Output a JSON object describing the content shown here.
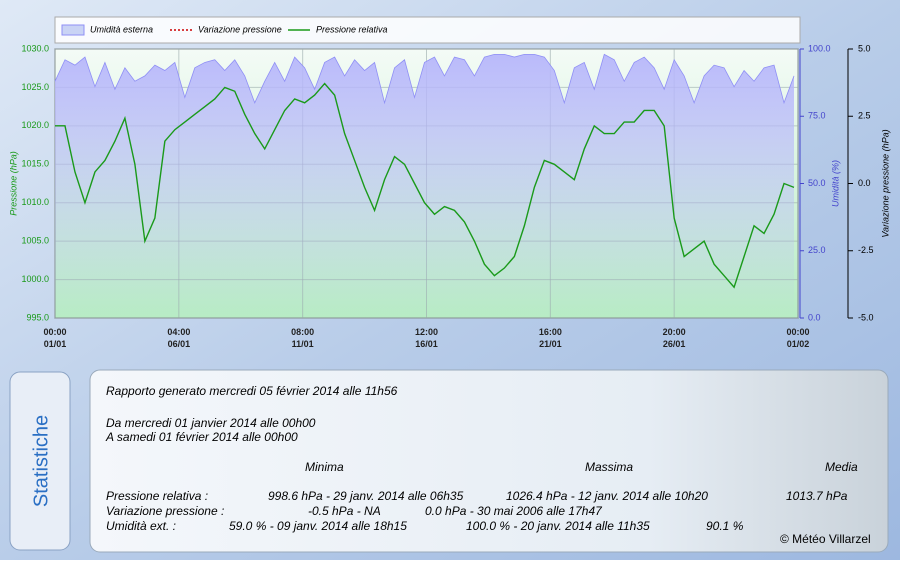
{
  "chart_data": {
    "type": "line",
    "legend": "top",
    "grid": true,
    "xlim": [
      0,
      744
    ],
    "xticks": [
      {
        "value": 0,
        "label": "00:00\n01/01"
      },
      {
        "value": 124,
        "label": "04:00\n06/01"
      },
      {
        "value": 248,
        "label": "08:00\n11/01"
      },
      {
        "value": 372,
        "label": "12:00\n16/01"
      },
      {
        "value": 496,
        "label": "16:00\n21/01"
      },
      {
        "value": 620,
        "label": "20:00\n26/01"
      },
      {
        "value": 744,
        "label": "00:00\n01/02"
      }
    ],
    "ylabel": "Pressione (hPa)",
    "ylim": [
      995,
      1030
    ],
    "yticks": [
      {
        "value": 995,
        "label": "995.0"
      },
      {
        "value": 1000,
        "label": "1000.0"
      },
      {
        "value": 1005,
        "label": "1005.0"
      },
      {
        "value": 1010,
        "label": "1010.0"
      },
      {
        "value": 1015,
        "label": "1015.0"
      },
      {
        "value": 1020,
        "label": "1020.0"
      },
      {
        "value": 1025,
        "label": "1025.0"
      },
      {
        "value": 1030,
        "label": "1030.0"
      }
    ],
    "y2label": "Umidità (%)",
    "y2lim": [
      0,
      100
    ],
    "y2ticks": [
      {
        "value": 0,
        "label": "0.0"
      },
      {
        "value": 25,
        "label": "25.0"
      },
      {
        "value": 50,
        "label": "50.0"
      },
      {
        "value": 75,
        "label": "75.0"
      },
      {
        "value": 100,
        "label": "100.0"
      }
    ],
    "y3label": "Variazione pressione (hPa)",
    "y3lim": [
      -5,
      5
    ],
    "y3ticks": [
      {
        "value": -5,
        "label": "-5.0"
      },
      {
        "value": -2.5,
        "label": "-2.5"
      },
      {
        "value": 0,
        "label": "0.0"
      },
      {
        "value": 2.5,
        "label": "2.5"
      },
      {
        "value": 5,
        "label": "5.0"
      }
    ],
    "x": [
      0,
      10,
      20,
      30,
      40,
      50,
      60,
      70,
      80,
      90,
      100,
      110,
      120,
      130,
      140,
      150,
      160,
      170,
      180,
      190,
      200,
      210,
      220,
      230,
      240,
      250,
      260,
      270,
      280,
      290,
      300,
      310,
      320,
      330,
      340,
      350,
      360,
      370,
      380,
      390,
      400,
      410,
      420,
      430,
      440,
      450,
      460,
      470,
      480,
      490,
      500,
      510,
      520,
      530,
      540,
      550,
      560,
      570,
      580,
      590,
      600,
      610,
      620,
      630,
      640,
      650,
      660,
      670,
      680,
      690,
      700,
      710,
      720,
      730,
      740
    ],
    "series": [
      {
        "name": "Umidità esterna",
        "color": "#8f8ff5",
        "axis": "y2",
        "area": true,
        "values": [
          88,
          96,
          94,
          97,
          86,
          95,
          85,
          93,
          88,
          90,
          94,
          92,
          95,
          82,
          93,
          95,
          96,
          92,
          96,
          90,
          80,
          88,
          95,
          88,
          97,
          93,
          85,
          95,
          97,
          90,
          96,
          92,
          95,
          80,
          93,
          96,
          82,
          95,
          97,
          90,
          97,
          96,
          90,
          97,
          98,
          98,
          97,
          98,
          98,
          97,
          92,
          80,
          93,
          95,
          85,
          98,
          96,
          88,
          95,
          97,
          93,
          85,
          96,
          90,
          80,
          90,
          94,
          93,
          86,
          92,
          88,
          93,
          94,
          80,
          90
        ]
      },
      {
        "name": "Variazione pressione",
        "color": "#cc0000",
        "axis": "y3",
        "dashed": true,
        "values": [
          null,
          null,
          null,
          null,
          null,
          null,
          null,
          null,
          null,
          null,
          null,
          null,
          null,
          null,
          null,
          null,
          null,
          null,
          null,
          null,
          null,
          null,
          null,
          null,
          null,
          null,
          null,
          null,
          null,
          null,
          null,
          null,
          null,
          null,
          null,
          null,
          null,
          null,
          null,
          null,
          null,
          null,
          null,
          null,
          null,
          null,
          null,
          null,
          null,
          null,
          null,
          null,
          null,
          null,
          null,
          null,
          null,
          null,
          null,
          null,
          null,
          null,
          null,
          null,
          null,
          null,
          null,
          null,
          null,
          null,
          null,
          null,
          null,
          null,
          null
        ]
      },
      {
        "name": "Pressione relativa",
        "color": "#1a9a1a",
        "axis": "y",
        "values": [
          1020,
          1020,
          1014,
          1010,
          1014,
          1015.5,
          1018,
          1021,
          1015,
          1005,
          1008,
          1018,
          1019.5,
          1020.5,
          1021.5,
          1022.5,
          1023.5,
          1025,
          1024.5,
          1021.5,
          1019,
          1017,
          1019.5,
          1022,
          1023.5,
          1023,
          1024,
          1025.5,
          1024,
          1019,
          1015.5,
          1012,
          1009,
          1013,
          1016,
          1015,
          1012.5,
          1010,
          1008.5,
          1009.5,
          1009,
          1007.5,
          1005,
          1002,
          1000.5,
          1001.5,
          1003,
          1007,
          1012,
          1015.5,
          1015,
          1014,
          1013,
          1017,
          1020,
          1019,
          1019,
          1020.5,
          1020.5,
          1022,
          1022,
          1020,
          1008,
          1003,
          1004,
          1005,
          1002,
          1000.5,
          999,
          1003,
          1007,
          1006,
          1008.5,
          1012.5,
          1012
        ]
      }
    ]
  },
  "stats": {
    "tab": "Statistiche",
    "report": "Rapporto generato mercredi 05 février 2014 alle 11h56",
    "from": "Da mercredi 01 janvier 2014 alle 00h00",
    "to": "A samedi 01 février 2014 alle 00h00",
    "headers": [
      "Minima",
      "Massima",
      "Media"
    ],
    "rows": [
      [
        "Pressione relativa :",
        "998.6 hPa - 29 janv. 2014 alle 06h35",
        "1026.4 hPa - 12 janv. 2014 alle 10h20",
        "1013.7 hPa"
      ],
      [
        "Variazione pressione :",
        "-0.5 hPa - NA",
        "0.0 hPa - 30 mai 2006 alle 17h47"
      ],
      [
        "Umidità ext. :",
        "59.0 % - 09 janv. 2014 alle 18h15",
        "100.0 % - 20 janv. 2014 alle 11h35",
        "90.1 %"
      ]
    ],
    "copyright": "© Météo Villarzel"
  }
}
